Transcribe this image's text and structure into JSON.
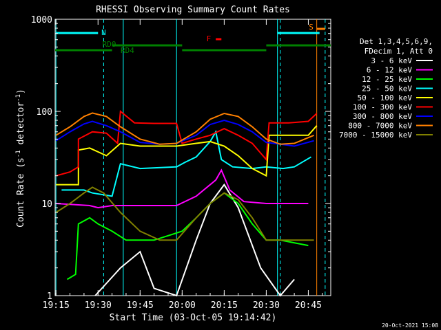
{
  "chart_data": {
    "type": "line",
    "title": "RHESSI Observing Summary Count Rates",
    "xlabel": "Start Time (03-Oct-05 19:14:42)",
    "ylabel": "Count Rate (s⁻¹ detector⁻¹)",
    "ylabel_parts": {
      "base": "Count Rate (s",
      "sup1": "-1",
      "mid": " detector",
      "sup2": "-1",
      "end": ")"
    },
    "yscale": "log",
    "ylim": [
      1,
      1000
    ],
    "xlim": [
      "19:14:42",
      "20:53:00"
    ],
    "x_ticks": [
      "19:15",
      "19:30",
      "19:45",
      "20:00",
      "20:15",
      "20:30",
      "20:45"
    ],
    "y_ticks": [
      "1",
      "10",
      "100",
      "1000"
    ],
    "timestamp": "20-Oct-2021 15:08",
    "legend_header": [
      "Det 1,3,4,5,6,9,",
      "FDecim 1, Att 0"
    ],
    "series": [
      {
        "name": "3 - 6 keV",
        "color": "#ffffff",
        "points": [
          [
            "19:29",
            1
          ],
          [
            "19:38",
            2
          ],
          [
            "19:45",
            3
          ],
          [
            "19:50",
            1.2
          ],
          [
            "19:58",
            1
          ],
          [
            "20:05",
            4
          ],
          [
            "20:10",
            10
          ],
          [
            "20:15",
            16
          ],
          [
            "20:20",
            9
          ],
          [
            "20:28",
            2
          ],
          [
            "20:35",
            1
          ],
          [
            "20:40",
            1.5
          ]
        ]
      },
      {
        "name": "6 - 12 keV",
        "color": "#ff00ff",
        "points": [
          [
            "19:15",
            10
          ],
          [
            "19:27",
            9.5
          ],
          [
            "19:30",
            9
          ],
          [
            "19:35",
            9.5
          ],
          [
            "19:45",
            9.5
          ],
          [
            "19:58",
            9.5
          ],
          [
            "20:05",
            12
          ],
          [
            "20:12",
            18
          ],
          [
            "20:14",
            23
          ],
          [
            "20:17",
            14
          ],
          [
            "20:22",
            10.5
          ],
          [
            "20:30",
            10
          ],
          [
            "20:45",
            10
          ]
        ]
      },
      {
        "name": "12 - 25 keV",
        "color": "#00ff00",
        "points": [
          [
            "19:19",
            1.5
          ],
          [
            "19:22",
            1.7
          ],
          [
            "19:23",
            6
          ],
          [
            "19:27",
            7
          ],
          [
            "19:30",
            6
          ],
          [
            "19:35",
            5
          ],
          [
            "19:40",
            4
          ],
          [
            "19:45",
            4
          ],
          [
            "19:50",
            4
          ],
          [
            "20:00",
            5
          ],
          [
            "20:05",
            7
          ],
          [
            "20:10",
            10
          ],
          [
            "20:15",
            13
          ],
          [
            "20:20",
            10
          ],
          [
            "20:25",
            6
          ],
          [
            "20:30",
            4
          ],
          [
            "20:35",
            4
          ],
          [
            "20:45",
            3.5
          ]
        ]
      },
      {
        "name": "25 - 50 keV",
        "color": "#00ffff",
        "points": [
          [
            "19:17",
            14
          ],
          [
            "19:25",
            14
          ],
          [
            "19:28",
            13
          ],
          [
            "19:35",
            12
          ],
          [
            "19:38",
            27
          ],
          [
            "19:45",
            24
          ],
          [
            "19:58",
            25
          ],
          [
            "20:01",
            28
          ],
          [
            "20:05",
            32
          ],
          [
            "20:10",
            47
          ],
          [
            "20:12",
            60
          ],
          [
            "20:14",
            30
          ],
          [
            "20:18",
            25
          ],
          [
            "20:25",
            24
          ],
          [
            "20:30",
            25
          ],
          [
            "20:36",
            24
          ],
          [
            "20:40",
            25
          ],
          [
            "20:46",
            32
          ]
        ]
      },
      {
        "name": "50 - 100 keV",
        "color": "#ffff00",
        "points": [
          [
            "19:15",
            16
          ],
          [
            "19:23",
            16
          ],
          [
            "19:23",
            38
          ],
          [
            "19:27",
            40
          ],
          [
            "19:33",
            33
          ],
          [
            "19:38",
            45
          ],
          [
            "19:45",
            42
          ],
          [
            "19:58",
            42
          ],
          [
            "20:05",
            45
          ],
          [
            "20:10",
            47
          ],
          [
            "20:15",
            42
          ],
          [
            "20:20",
            33
          ],
          [
            "20:25",
            24
          ],
          [
            "20:30",
            20
          ],
          [
            "20:31",
            55
          ],
          [
            "20:38",
            55
          ],
          [
            "20:45",
            55
          ],
          [
            "20:48",
            70
          ]
        ]
      },
      {
        "name": "100 - 300 keV",
        "color": "#ff0000",
        "points": [
          [
            "19:15",
            20
          ],
          [
            "19:20",
            22
          ],
          [
            "19:23",
            25
          ],
          [
            "19:23",
            50
          ],
          [
            "19:28",
            60
          ],
          [
            "19:33",
            58
          ],
          [
            "19:37",
            45
          ],
          [
            "19:38",
            100
          ],
          [
            "19:43",
            75
          ],
          [
            "19:50",
            74
          ],
          [
            "19:58",
            74
          ],
          [
            "20:00",
            45
          ],
          [
            "20:05",
            50
          ],
          [
            "20:10",
            55
          ],
          [
            "20:15",
            65
          ],
          [
            "20:20",
            55
          ],
          [
            "20:25",
            45
          ],
          [
            "20:30",
            30
          ],
          [
            "20:31",
            75
          ],
          [
            "20:38",
            75
          ],
          [
            "20:45",
            78
          ],
          [
            "20:48",
            95
          ]
        ]
      },
      {
        "name": "300 - 800 keV",
        "color": "#0000ff",
        "points": [
          [
            "19:15",
            48
          ],
          [
            "19:20",
            60
          ],
          [
            "19:25",
            73
          ],
          [
            "19:28",
            78
          ],
          [
            "19:33",
            70
          ],
          [
            "19:38",
            60
          ],
          [
            "19:45",
            46
          ],
          [
            "19:52",
            44
          ],
          [
            "19:58",
            45
          ],
          [
            "20:05",
            55
          ],
          [
            "20:10",
            72
          ],
          [
            "20:15",
            80
          ],
          [
            "20:20",
            72
          ],
          [
            "20:25",
            60
          ],
          [
            "20:30",
            46
          ],
          [
            "20:35",
            44
          ],
          [
            "20:40",
            42
          ],
          [
            "20:47",
            48
          ]
        ]
      },
      {
        "name": "800 - 7000 keV",
        "color": "#ff8000",
        "points": [
          [
            "19:15",
            55
          ],
          [
            "19:20",
            68
          ],
          [
            "19:25",
            88
          ],
          [
            "19:28",
            96
          ],
          [
            "19:33",
            88
          ],
          [
            "19:38",
            68
          ],
          [
            "19:45",
            50
          ],
          [
            "19:52",
            44
          ],
          [
            "19:58",
            45
          ],
          [
            "20:05",
            60
          ],
          [
            "20:10",
            82
          ],
          [
            "20:15",
            95
          ],
          [
            "20:20",
            88
          ],
          [
            "20:25",
            68
          ],
          [
            "20:30",
            50
          ],
          [
            "20:35",
            44
          ],
          [
            "20:40",
            45
          ],
          [
            "20:47",
            55
          ]
        ]
      },
      {
        "name": "7000 - 15000 keV",
        "color": "#808000",
        "points": [
          [
            "19:15",
            8
          ],
          [
            "19:20",
            10
          ],
          [
            "19:25",
            13
          ],
          [
            "19:28",
            15
          ],
          [
            "19:32",
            13
          ],
          [
            "19:38",
            8
          ],
          [
            "19:45",
            5
          ],
          [
            "19:52",
            4
          ],
          [
            "19:58",
            4
          ],
          [
            "20:05",
            7
          ],
          [
            "20:10",
            10
          ],
          [
            "20:15",
            13
          ],
          [
            "20:20",
            11
          ],
          [
            "20:25",
            7
          ],
          [
            "20:30",
            4
          ],
          [
            "20:35",
            4
          ],
          [
            "20:40",
            4
          ],
          [
            "20:47",
            4
          ]
        ]
      }
    ],
    "annotations": {
      "N": {
        "label": "N",
        "color": "#00ffff"
      },
      "F": {
        "label": "F",
        "color": "#ff0000"
      },
      "S": {
        "label": "S",
        "color": "#ff8000"
      },
      "RD0": {
        "label": "RD0",
        "color": "#008000"
      },
      "RD4": {
        "label": "RD4",
        "color": "#008000"
      }
    }
  }
}
